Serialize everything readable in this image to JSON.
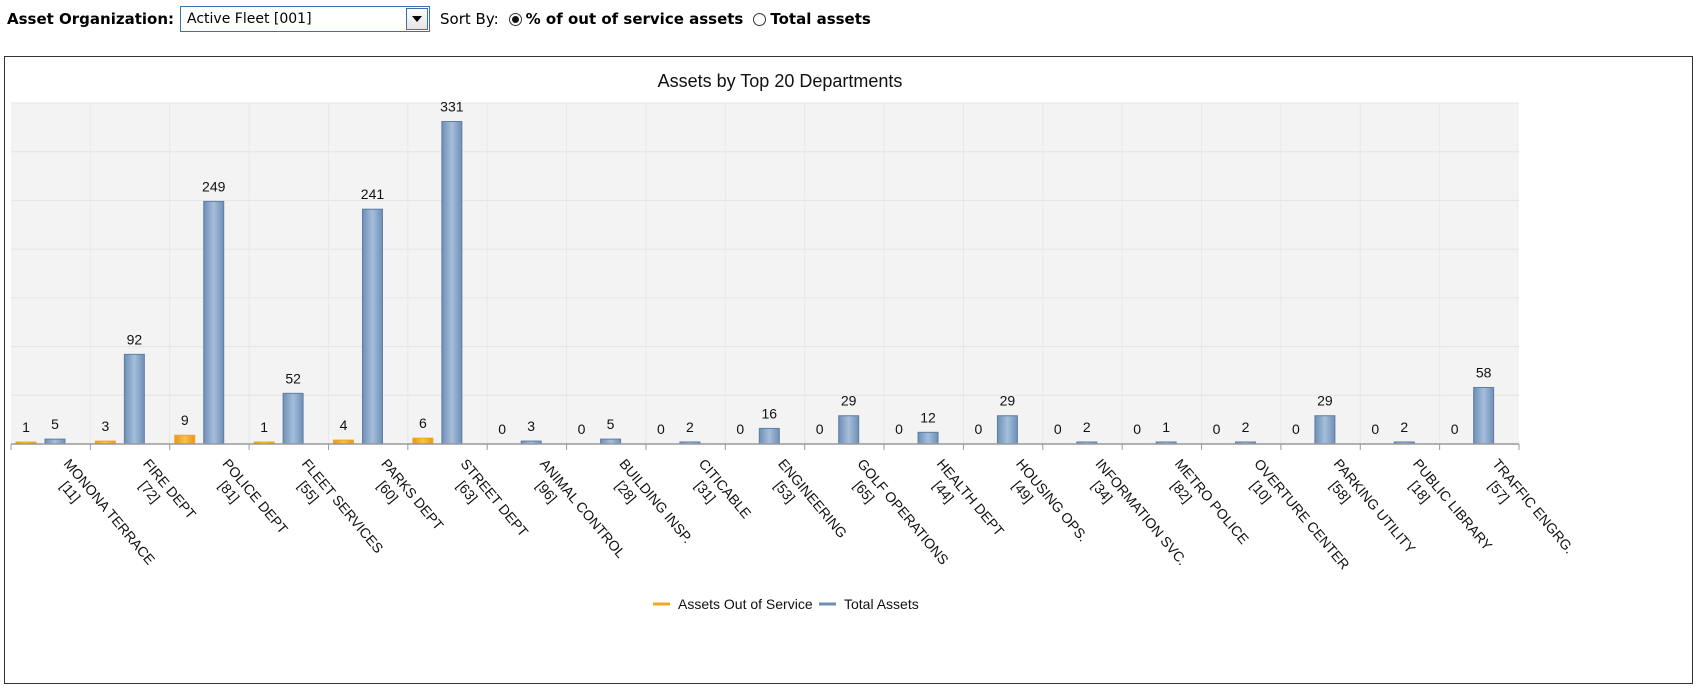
{
  "filter": {
    "org_label": "Asset Organization:",
    "org_value": "Active Fleet [001]",
    "sort_label": "Sort By:",
    "options": [
      {
        "label": "% of out of service assets",
        "checked": true
      },
      {
        "label": "Total assets",
        "checked": false
      }
    ]
  },
  "colors": {
    "out_of_service": "#f5a71c",
    "total": "#7f9fc3",
    "axis": "#999999",
    "plot_bg": "#f3f3f3"
  },
  "chart_data": {
    "type": "bar",
    "title": "Assets by Top 20 Departments",
    "xlabel": "",
    "ylabel": "",
    "ylim": [
      0,
      350
    ],
    "grid": true,
    "legend": "bottom-center",
    "categories": [
      "MONONA TERRACE [11]",
      "FIRE DEPT [72]",
      "POLICE DEPT [81]",
      "FLEET SERVICES [55]",
      "PARKS DEPT [60]",
      "STREET DEPT [63]",
      "ANIMAL CONTROL [96]",
      "BUILDING INSP. [28]",
      "CITICABLE [31]",
      "ENGINEERING [53]",
      "GOLF OPERATIONS [65]",
      "HEALTH DEPT [44]",
      "HOUSING OPS. [49]",
      "INFORMATION SVC. [34]",
      "METRO POLICE [82]",
      "OVERTURE CENTER [10]",
      "PARKING UTILITY [58]",
      "PUBLIC LIBRARY [18]",
      "TRAFFIC ENGRG. [57]"
    ],
    "category_lines": [
      [
        "MONONA TERRACE",
        "[11]"
      ],
      [
        "FIRE DEPT",
        "[72]"
      ],
      [
        "POLICE DEPT",
        "[81]"
      ],
      [
        "FLEET SERVICES",
        "[55]"
      ],
      [
        "PARKS DEPT",
        "[60]"
      ],
      [
        "STREET DEPT",
        "[63]"
      ],
      [
        "ANIMAL CONTROL",
        "[96]"
      ],
      [
        "BUILDING INSP.",
        "[28]"
      ],
      [
        "CITICABLE",
        "[31]"
      ],
      [
        "ENGINEERING",
        "[53]"
      ],
      [
        "GOLF OPERATIONS",
        "[65]"
      ],
      [
        "HEALTH DEPT",
        "[44]"
      ],
      [
        "HOUSING OPS.",
        "[49]"
      ],
      [
        "INFORMATION SVC.",
        "[34]"
      ],
      [
        "METRO POLICE",
        "[82]"
      ],
      [
        "OVERTURE CENTER",
        "[10]"
      ],
      [
        "PARKING UTILITY",
        "[58]"
      ],
      [
        "PUBLIC LIBRARY",
        "[18]"
      ],
      [
        "TRAFFIC ENGRG.",
        "[57]"
      ]
    ],
    "series": [
      {
        "name": "Assets Out of Service",
        "values": [
          1,
          3,
          9,
          1,
          4,
          6,
          0,
          0,
          0,
          0,
          0,
          0,
          0,
          0,
          0,
          0,
          0,
          0,
          0
        ]
      },
      {
        "name": "Total Assets",
        "values": [
          5,
          92,
          249,
          52,
          241,
          331,
          3,
          5,
          2,
          16,
          29,
          12,
          29,
          2,
          1,
          2,
          29,
          2,
          58
        ]
      }
    ]
  }
}
